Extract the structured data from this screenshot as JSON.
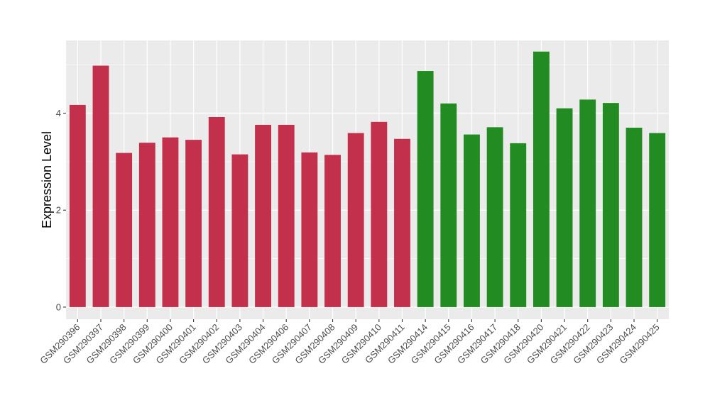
{
  "chart_data": {
    "type": "bar",
    "title": "",
    "xlabel": "",
    "ylabel": "Expression Level",
    "ylim": [
      -0.25,
      5.5
    ],
    "y_ticks": [
      0,
      2,
      4
    ],
    "grid": true,
    "legend": "none",
    "categories": [
      "GSM290396",
      "GSM290397",
      "GSM290398",
      "GSM290399",
      "GSM290400",
      "GSM290401",
      "GSM290402",
      "GSM290403",
      "GSM290404",
      "GSM290406",
      "GSM290407",
      "GSM290408",
      "GSM290409",
      "GSM290410",
      "GSM290411",
      "GSM290414",
      "GSM290415",
      "GSM290416",
      "GSM290417",
      "GSM290418",
      "GSM290420",
      "GSM290421",
      "GSM290422",
      "GSM290423",
      "GSM290424",
      "GSM290425"
    ],
    "values": [
      4.17,
      4.98,
      3.18,
      3.39,
      3.5,
      3.45,
      3.92,
      3.15,
      3.76,
      3.76,
      3.19,
      3.14,
      3.59,
      3.82,
      3.47,
      4.87,
      4.2,
      3.56,
      3.71,
      3.38,
      5.27,
      4.1,
      4.28,
      4.21,
      3.7,
      3.59
    ],
    "groups": [
      "a",
      "a",
      "a",
      "a",
      "a",
      "a",
      "a",
      "a",
      "a",
      "a",
      "a",
      "a",
      "a",
      "a",
      "a",
      "b",
      "b",
      "b",
      "b",
      "b",
      "b",
      "b",
      "b",
      "b",
      "b",
      "b"
    ],
    "group_colors": {
      "a": "#c3304b",
      "b": "#228b22"
    },
    "panel_background": "#ebebeb",
    "grid_color": "#ffffff"
  }
}
